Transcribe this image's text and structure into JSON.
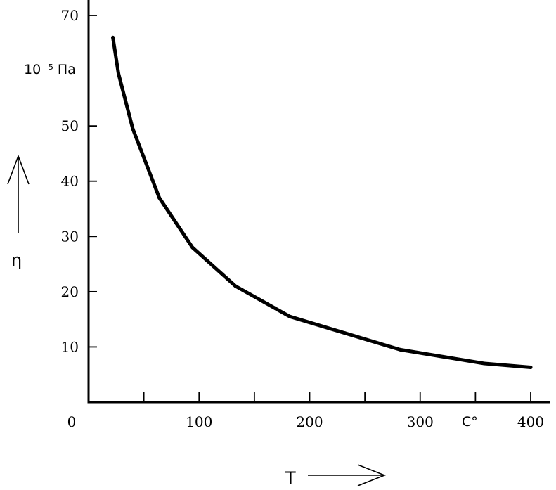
{
  "chart_data": {
    "type": "line",
    "xlabel": "T",
    "ylabel": "η",
    "y_unit_label": "10⁻⁵ Па",
    "x_unit_label": "C°",
    "xlim": [
      0,
      400
    ],
    "ylim": [
      0,
      70
    ],
    "x_ticks": [
      0,
      100,
      200,
      300,
      400
    ],
    "y_ticks": [
      10,
      20,
      30,
      40,
      50,
      70
    ],
    "x_minor_ticks": [
      50,
      150,
      250,
      350
    ],
    "grid": false,
    "series": [
      {
        "x": [
          22,
          27,
          40,
          64,
          94,
          133,
          182,
          232,
          282,
          358,
          400
        ],
        "y": [
          66,
          59.5,
          49.5,
          37,
          28,
          21,
          15.5,
          12.5,
          9.5,
          7,
          6.3
        ]
      }
    ]
  }
}
